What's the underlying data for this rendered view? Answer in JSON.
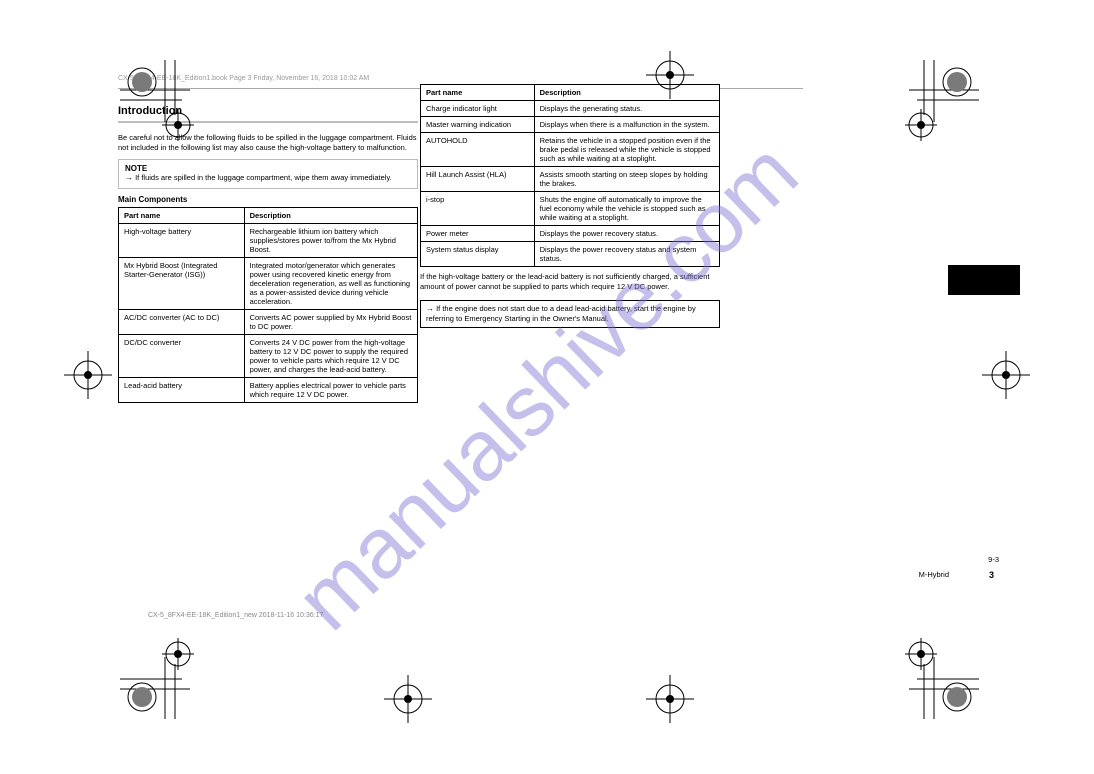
{
  "watermark": "manualshive.com",
  "header": {
    "file_left": "CX-5_8FX4-EE-18K_Edition1.book  Page 3  Friday, November 16, 2018  10:02 AM",
    "file_footer": "CX-5_8FX4-EE-18K_Edition1_new  2018-11-16 10:36:17"
  },
  "left": {
    "title": "Introduction",
    "lead": "Be careful not to allow the following fluids to be spilled in the luggage compartment. Fluids not included in the following list may also cause the high-voltage battery to malfunction.",
    "note_title": "NOTE",
    "note_body": "If fluids are spilled in the luggage compartment, wipe them away immediately.",
    "note_arrow": "→",
    "sub": "Main Components",
    "table": {
      "cols": [
        "Part name",
        "Description"
      ],
      "rows": [
        [
          "High-voltage battery",
          "Rechargeable lithium ion battery which supplies/stores power to/from the Mx Hybrid Boost."
        ],
        [
          "Mx Hybrid Boost (Integrated Starter-Generator (ISG))",
          "Integrated motor/generator which generates power using recovered kinetic energy from deceleration regeneration, as well as functioning as a power-assisted device during vehicle acceleration."
        ],
        [
          "AC/DC converter (AC to DC)",
          "Converts AC power supplied by Mx Hybrid Boost to DC power."
        ],
        [
          "DC/DC converter",
          "Converts 24 V DC power from the high-voltage battery to 12 V DC power to supply the required power to vehicle parts which require 12 V DC power, and charges the lead-acid battery."
        ],
        [
          "Lead-acid battery",
          "Battery applies electrical power to vehicle parts which require 12 V DC power."
        ]
      ]
    }
  },
  "right": {
    "table": {
      "cols": [
        "Part name",
        "Description"
      ],
      "rows": [
        [
          "Charge indicator light",
          "Displays the generating status."
        ],
        [
          "Master warning indication",
          "Displays when there is a malfunction in the system."
        ],
        [
          "AUTOHOLD",
          "Retains the vehicle in a stopped position even if the brake pedal is released while the vehicle is stopped such as while waiting at a stoplight."
        ],
        [
          "Hill Launch Assist (HLA)",
          "Assists smooth starting on steep slopes by holding the brakes."
        ],
        [
          "i-stop",
          "Shuts the engine off automatically to improve the fuel economy while the vehicle is stopped such as while waiting at a stoplight."
        ],
        [
          "Power meter",
          "Displays the power recovery status."
        ],
        [
          "System status display",
          "Displays the power recovery status and system status."
        ]
      ]
    },
    "below_note": "If the high-voltage battery or the lead-acid battery is not sufficiently charged, a sufficient amount of power cannot be supplied to parts which require 12 V DC power.",
    "em_arrow": "→",
    "em_body": "If the engine does not start due to a dead lead-acid battery, start the engine by referring to Emergency Starting in the Owner's Manual."
  },
  "footer": {
    "sec": "9-3",
    "desc": "M-Hybrid",
    "page": "3"
  }
}
